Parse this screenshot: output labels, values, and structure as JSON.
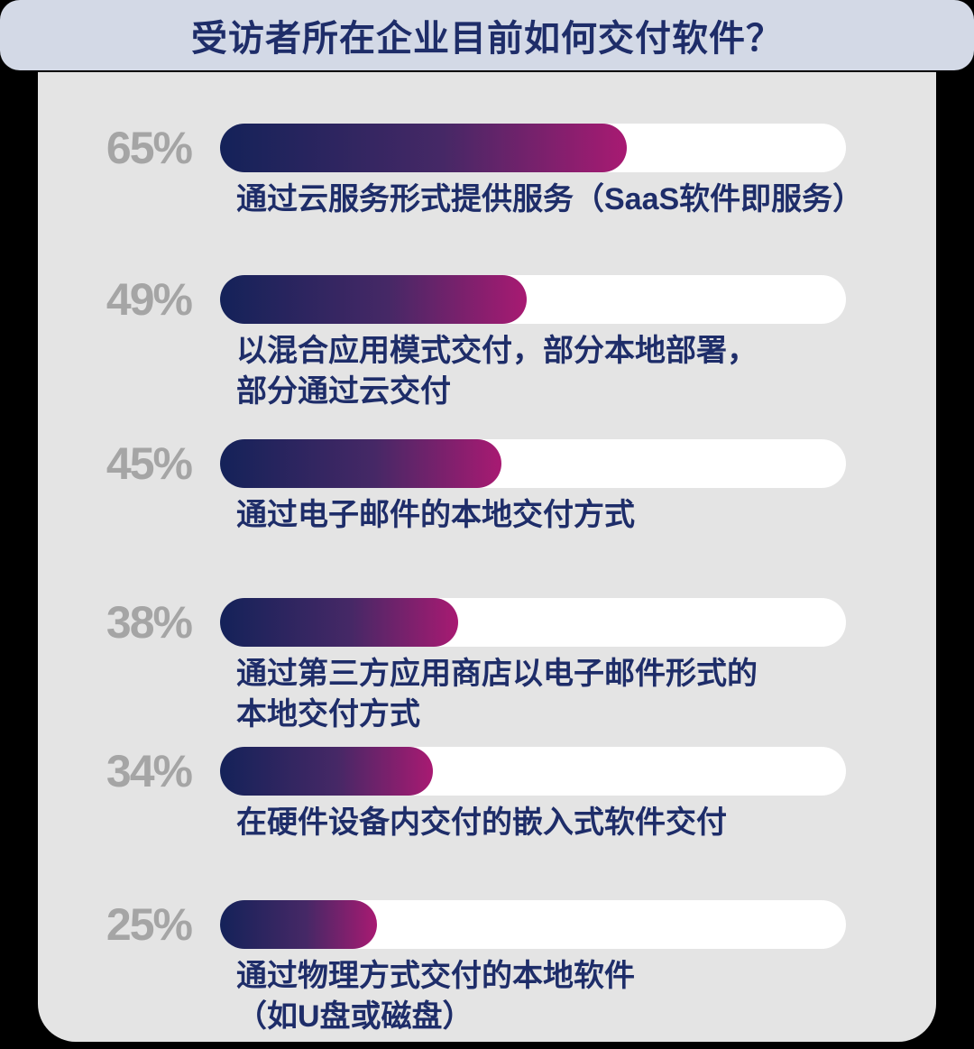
{
  "title": "受访者所在企业目前如何交付软件？",
  "colors": {
    "title_bar_bg": "#d3d9e6",
    "card_bg": "#e4e4e4",
    "title_text": "#1e2d69",
    "label_text": "#1e2d69",
    "pct_text": "#a5a5a5",
    "track": "#ffffff",
    "bar_gradient_start": "#142259",
    "bar_gradient_end": "#a81a72",
    "outer_bg": "#000000"
  },
  "rows": [
    {
      "pct_label": "65%",
      "value": 65,
      "label": "通过云服务形式提供服务（SaaS软件即服务）"
    },
    {
      "pct_label": "49%",
      "value": 49,
      "label": "以混合应用模式交付，部分本地部署，\n部分通过云交付"
    },
    {
      "pct_label": "45%",
      "value": 45,
      "label": "通过电子邮件的本地交付方式"
    },
    {
      "pct_label": "38%",
      "value": 38,
      "label": "通过第三方应用商店以电子邮件形式的\n本地交付方式"
    },
    {
      "pct_label": "34%",
      "value": 34,
      "label": "在硬件设备内交付的嵌入式软件交付"
    },
    {
      "pct_label": "25%",
      "value": 25,
      "label": "通过物理方式交付的本地软件\n（如U盘或磁盘）"
    }
  ],
  "chart_data": {
    "type": "bar",
    "orientation": "horizontal",
    "title": "受访者所在企业目前如何交付软件？",
    "categories": [
      "通过云服务形式提供服务（SaaS软件即服务）",
      "以混合应用模式交付，部分本地部署，部分通过云交付",
      "通过电子邮件的本地交付方式",
      "通过第三方应用商店以电子邮件形式的本地交付方式",
      "在硬件设备内交付的嵌入式软件交付",
      "通过物理方式交付的本地软件（如U盘或磁盘）"
    ],
    "values": [
      65,
      49,
      45,
      38,
      34,
      25
    ],
    "unit": "%",
    "xlabel": "",
    "ylabel": "",
    "xlim": [
      0,
      100
    ],
    "grid": false,
    "legend": false,
    "value_label_position": "left-of-bar"
  }
}
